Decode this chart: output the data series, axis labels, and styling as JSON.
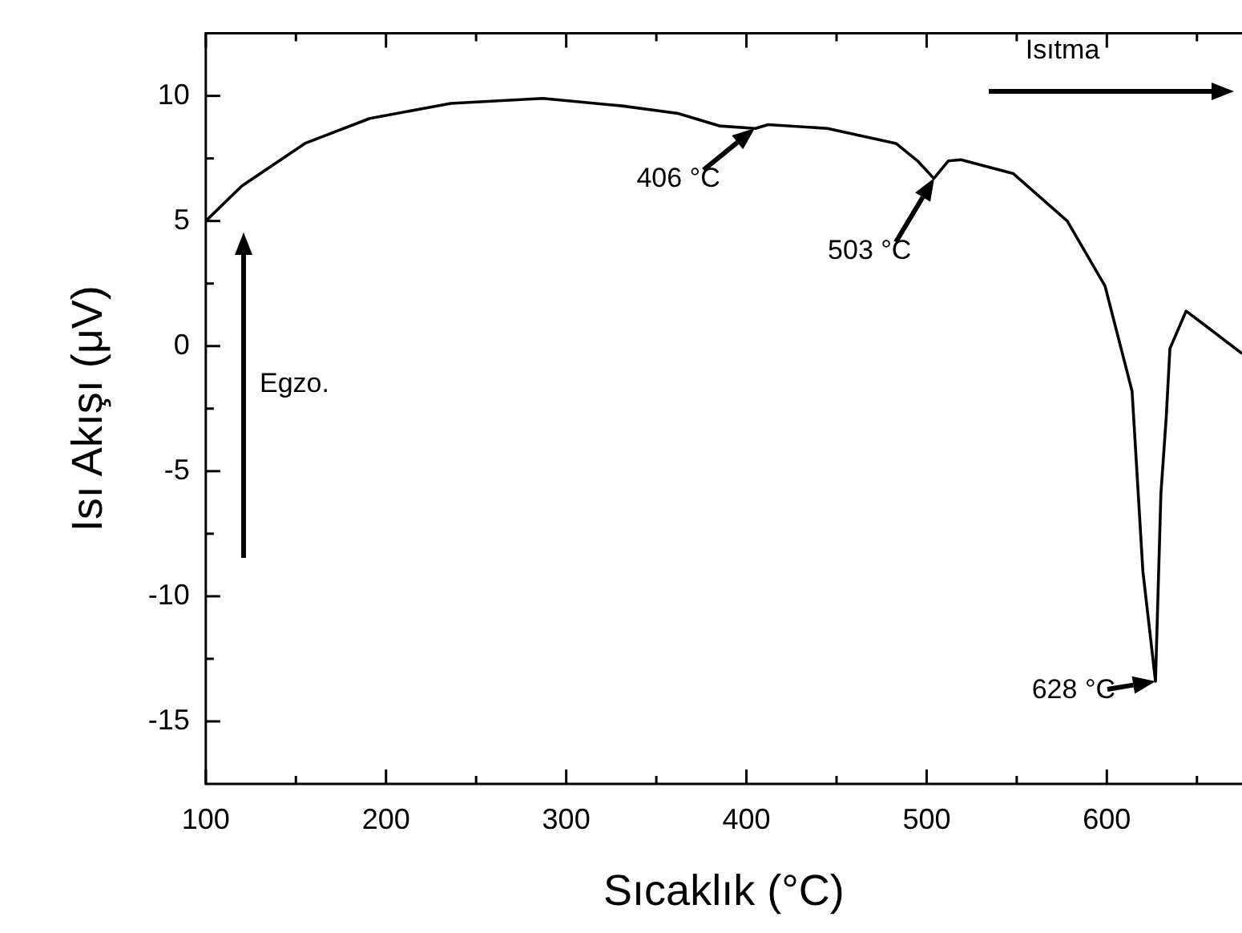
{
  "chart_data": {
    "type": "line",
    "xlabel": "Sıcaklık (°C)",
    "ylabel": "Isı Akışı (μV)",
    "xlim": [
      100,
      675
    ],
    "ylim": [
      -17.5,
      12.5
    ],
    "xticks": [
      100,
      {
        "value": 150,
        "label": null
      },
      200,
      {
        "value": 250,
        "label": null
      },
      300,
      {
        "value": 350,
        "label": null
      },
      400,
      {
        "value": 450,
        "label": null
      },
      500,
      {
        "value": 550,
        "label": null
      },
      600,
      {
        "value": 650,
        "label": null
      }
    ],
    "yticks": [
      -15,
      {
        "value": -12.5,
        "label": null
      },
      -10,
      {
        "value": -7.5,
        "label": null
      },
      -5,
      {
        "value": -2.5,
        "label": null
      },
      0,
      {
        "value": 2.5,
        "label": null
      },
      5,
      {
        "value": 7.5,
        "label": null
      },
      10
    ],
    "grid": false,
    "legend": false,
    "marker": "none",
    "line_style": "solid",
    "series": [
      {
        "color": "#000000",
        "x": [
          100,
          120,
          155,
          191,
          236,
          287,
          331,
          362,
          385,
          405,
          412,
          445,
          483,
          495,
          504,
          512,
          519,
          548,
          578,
          599,
          614,
          620,
          627,
          630,
          633,
          635,
          644,
          655,
          675
        ],
        "values": [
          5,
          6.4,
          8.1,
          9.1,
          9.7,
          9.9,
          9.6,
          9.3,
          8.8,
          8.7,
          8.85,
          8.7,
          8.1,
          7.4,
          6.7,
          7.4,
          7.45,
          6.9,
          5,
          2.4,
          -1.8,
          -9,
          -13.4,
          -5.9,
          -2.8,
          -0.1,
          1.4,
          0.8,
          -0.3
        ]
      }
    ],
    "annotations": [
      {
        "text": "406 °C",
        "x": 405,
        "y": 8.7
      },
      {
        "text": "503 °C",
        "x": 504,
        "y": 6.7
      },
      {
        "text": "628 °C",
        "x": 627,
        "y": -13.4
      },
      "Egzo.",
      "Isıtma"
    ]
  }
}
